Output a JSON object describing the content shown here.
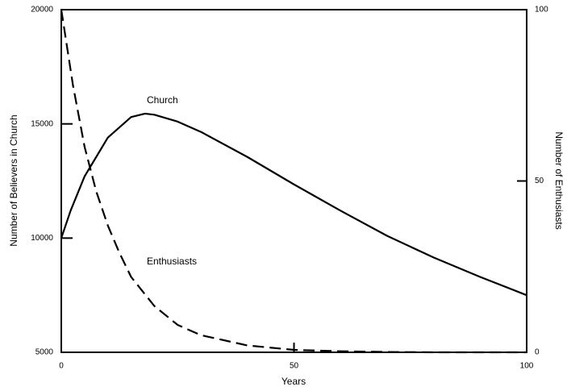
{
  "chart_data": {
    "type": "line",
    "xlabel": "Years",
    "ylabel": "Number of Believers in Church",
    "y2label": "Number of Enthusiasts",
    "xlim": [
      0,
      100
    ],
    "xticks": [
      0,
      50,
      100
    ],
    "ylim": [
      5000,
      20000
    ],
    "yticks": [
      5000,
      10000,
      15000,
      20000
    ],
    "y2lim": [
      0,
      100
    ],
    "y2ticks": [
      0,
      50,
      100
    ],
    "series": [
      {
        "name": "Church",
        "color": "#000000",
        "dashed": false,
        "x": [
          0,
          2,
          5,
          10,
          15,
          18,
          20,
          25,
          30,
          40,
          50,
          60,
          70,
          80,
          90,
          100
        ],
        "values": [
          10000,
          11200,
          12700,
          14400,
          15300,
          15450,
          15400,
          15100,
          14650,
          13550,
          12350,
          11200,
          10100,
          9150,
          8300,
          7500
        ]
      },
      {
        "name": "Enthusiasts",
        "color": "#000000",
        "dashed": true,
        "axis": "y2",
        "x": [
          0,
          2.5,
          5,
          7.5,
          10,
          12.5,
          15,
          20,
          25,
          30,
          40,
          50,
          60,
          70,
          80,
          100
        ],
        "values": [
          100,
          78,
          60,
          47,
          37,
          29,
          22,
          13.5,
          8,
          5,
          2,
          0.7,
          0.3,
          0.1,
          0,
          0
        ]
      }
    ]
  }
}
